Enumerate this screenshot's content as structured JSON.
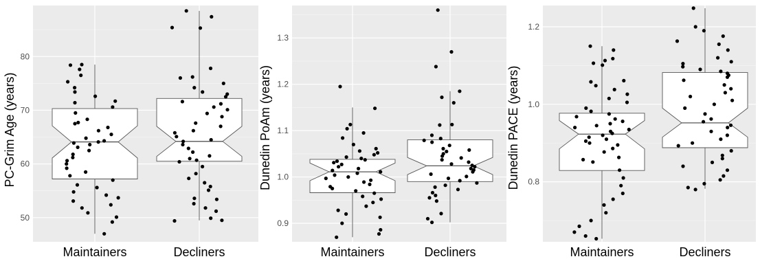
{
  "colors": {
    "panel_bg": "#ebebeb",
    "grid_major": "#ffffff",
    "grid_minor": "#f5f5f5",
    "box_fill": "#ffffff",
    "box_line": "#555555",
    "point": "#000000"
  },
  "chart_data": [
    {
      "type": "box",
      "ylabel": "PC-Grim Age (years)",
      "categories": [
        "Maintainers",
        "Decliners"
      ],
      "ylim": [
        45.5,
        89.5
      ],
      "yticks": [
        50,
        60,
        70,
        80
      ],
      "boxes": [
        {
          "category": "Maintainers",
          "whisker_low": 47,
          "q1": 57.2,
          "median": 64.1,
          "q3": 70.3,
          "whisker_high": 78.5,
          "notch_low": 61.1,
          "notch_high": 67.1
        },
        {
          "category": "Decliners",
          "whisker_low": 49.5,
          "q1": 60.5,
          "median": 64.2,
          "q3": 72.2,
          "whisker_high": 88.5,
          "notch_low": 61.4,
          "notch_high": 67.0
        }
      ],
      "points": [
        {
          "category": "Maintainers",
          "values": [
            78.5,
            78.4,
            77.6,
            76.5,
            75.3,
            74.2,
            73.4,
            72.6,
            71.7,
            71.4,
            70.6,
            69.5,
            68.3,
            67.7,
            67.5,
            66.8,
            66.2,
            65.5,
            64.8,
            64.3,
            64.1,
            63.9,
            63.6,
            63.1,
            62.5,
            61.8,
            61.2,
            60.6,
            60.0,
            59.2,
            58.5,
            57.8,
            57.0,
            56.1,
            55.6,
            54.8,
            54.2,
            53.7,
            53.1,
            52.4,
            51.8,
            50.9,
            50.1,
            49.2,
            47.0
          ]
        },
        {
          "category": "Decliners",
          "values": [
            88.5,
            87.4,
            85.4,
            85.3,
            77.8,
            76.2,
            76.0,
            75.0,
            74.2,
            73.4,
            73.0,
            72.5,
            71.6,
            71.2,
            70.6,
            70.1,
            69.4,
            68.8,
            67.6,
            67.0,
            66.2,
            65.8,
            65.1,
            64.5,
            64.2,
            63.6,
            62.9,
            62.2,
            61.5,
            61.0,
            60.7,
            60.4,
            59.5,
            58.2,
            57.3,
            56.5,
            55.8,
            55.1,
            53.6,
            53.4,
            52.6,
            51.8,
            51.2,
            49.9,
            49.5,
            49.4
          ]
        }
      ]
    },
    {
      "type": "box",
      "ylabel": "Dunedin PoAm (years)",
      "categories": [
        "Maintainers",
        "Decliners"
      ],
      "ylim": [
        0.86,
        1.37
      ],
      "yticks": [
        0.9,
        1.0,
        1.1,
        1.2,
        1.3
      ],
      "boxes": [
        {
          "category": "Maintainers",
          "whisker_low": 0.87,
          "q1": 0.966,
          "median": 1.011,
          "q3": 1.038,
          "whisker_high": 1.15,
          "notch_low": 0.992,
          "notch_high": 1.03
        },
        {
          "category": "Decliners",
          "whisker_low": 0.902,
          "q1": 0.99,
          "median": 1.024,
          "q3": 1.08,
          "whisker_high": 1.185,
          "notch_low": 1.005,
          "notch_high": 1.042
        }
      ],
      "points": [
        {
          "category": "Maintainers",
          "values": [
            1.195,
            1.148,
            1.113,
            1.104,
            1.095,
            1.084,
            1.07,
            1.061,
            1.056,
            1.052,
            1.048,
            1.043,
            1.04,
            1.037,
            1.034,
            1.031,
            1.027,
            1.022,
            1.018,
            1.014,
            1.011,
            1.008,
            1.004,
            1.0,
            0.997,
            0.993,
            0.989,
            0.984,
            0.979,
            0.975,
            0.97,
            0.965,
            0.958,
            0.952,
            0.945,
            0.937,
            0.928,
            0.92,
            0.913,
            0.9,
            0.886,
            0.877,
            0.87
          ]
        },
        {
          "category": "Decliners",
          "values": [
            1.36,
            1.27,
            1.238,
            1.185,
            1.172,
            1.16,
            1.113,
            1.112,
            1.09,
            1.083,
            1.079,
            1.075,
            1.068,
            1.061,
            1.058,
            1.055,
            1.05,
            1.045,
            1.041,
            1.037,
            1.032,
            1.028,
            1.025,
            1.022,
            1.018,
            1.015,
            1.011,
            1.006,
            1.001,
            0.997,
            0.992,
            0.987,
            0.982,
            0.978,
            0.973,
            0.966,
            0.96,
            0.955,
            0.948,
            0.921,
            0.91,
            0.902
          ]
        }
      ]
    },
    {
      "type": "box",
      "ylabel": "Dunedin PACE (years)",
      "categories": [
        "Maintainers",
        "Decliners"
      ],
      "ylim": [
        0.645,
        1.255
      ],
      "yticks": [
        0.8,
        1.0,
        1.2
      ],
      "boxes": [
        {
          "category": "Maintainers",
          "whisker_low": 0.653,
          "q1": 0.829,
          "median": 0.923,
          "q3": 0.977,
          "whisker_high": 1.15,
          "notch_low": 0.885,
          "notch_high": 0.958
        },
        {
          "category": "Decliners",
          "whisker_low": 0.782,
          "q1": 0.888,
          "median": 0.952,
          "q3": 1.082,
          "whisker_high": 1.248,
          "notch_low": 0.915,
          "notch_high": 0.99
        }
      ],
      "points": [
        {
          "category": "Maintainers",
          "values": [
            1.15,
            1.14,
            1.118,
            1.113,
            1.106,
            1.101,
            1.061,
            1.058,
            1.048,
            1.038,
            1.026,
            1.015,
            1.005,
            0.99,
            0.982,
            0.975,
            0.968,
            0.962,
            0.956,
            0.95,
            0.945,
            0.94,
            0.935,
            0.93,
            0.925,
            0.92,
            0.915,
            0.91,
            0.905,
            0.9,
            0.895,
            0.886,
            0.877,
            0.863,
            0.857,
            0.851,
            0.83,
            0.81,
            0.79,
            0.77,
            0.755,
            0.74,
            0.72,
            0.7,
            0.685,
            0.67,
            0.66,
            0.653
          ]
        },
        {
          "category": "Decliners",
          "values": [
            1.248,
            1.2,
            1.19,
            1.176,
            1.163,
            1.155,
            1.14,
            1.12,
            1.11,
            1.105,
            1.097,
            1.09,
            1.085,
            1.08,
            1.075,
            1.07,
            1.062,
            1.05,
            1.04,
            1.03,
            1.02,
            1.01,
            1.0,
            0.99,
            0.975,
            0.962,
            0.955,
            0.946,
            0.94,
            0.93,
            0.92,
            0.91,
            0.9,
            0.893,
            0.88,
            0.868,
            0.86,
            0.85,
            0.84,
            0.83,
            0.815,
            0.805,
            0.795,
            0.785,
            0.78
          ]
        }
      ]
    }
  ]
}
